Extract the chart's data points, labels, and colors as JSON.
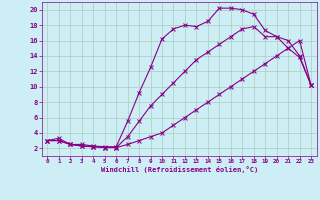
{
  "xlabel": "Windchill (Refroidissement éolien,°C)",
  "bg_color": "#cdeef5",
  "line_color": "#880088",
  "grid_color": "#aaccbb",
  "xlim": [
    -0.5,
    23.5
  ],
  "ylim": [
    1,
    21
  ],
  "xticks": [
    0,
    1,
    2,
    3,
    4,
    5,
    6,
    7,
    8,
    9,
    10,
    11,
    12,
    13,
    14,
    15,
    16,
    17,
    18,
    19,
    20,
    21,
    22,
    23
  ],
  "yticks": [
    2,
    4,
    6,
    8,
    10,
    12,
    14,
    16,
    18,
    20
  ],
  "line1_x": [
    0,
    1,
    2,
    3,
    4,
    5,
    6,
    7,
    8,
    9,
    10,
    11,
    12,
    13,
    14,
    15,
    16,
    17,
    18,
    19,
    20,
    21,
    22,
    23
  ],
  "line1_y": [
    3,
    3.3,
    2.5,
    2.5,
    2.3,
    2.2,
    2.2,
    5.5,
    9.2,
    12.5,
    16.2,
    17.5,
    18.0,
    17.8,
    18.5,
    20.2,
    20.2,
    20.0,
    19.4,
    17.3,
    16.5,
    15.0,
    13.8,
    10.2
  ],
  "line2_x": [
    0,
    1,
    2,
    3,
    4,
    5,
    6,
    7,
    8,
    9,
    10,
    11,
    12,
    13,
    14,
    15,
    16,
    17,
    18,
    19,
    20,
    21,
    22,
    23
  ],
  "line2_y": [
    3,
    3.0,
    2.5,
    2.3,
    2.2,
    2.1,
    2.1,
    3.5,
    5.5,
    7.5,
    9.0,
    10.5,
    12.0,
    13.5,
    14.5,
    15.5,
    16.5,
    17.5,
    17.8,
    16.5,
    16.5,
    16.0,
    14.0,
    10.2
  ],
  "line3_x": [
    0,
    1,
    2,
    3,
    4,
    5,
    6,
    7,
    8,
    9,
    10,
    11,
    12,
    13,
    14,
    15,
    16,
    17,
    18,
    19,
    20,
    21,
    22,
    23
  ],
  "line3_y": [
    3,
    3.0,
    2.5,
    2.3,
    2.2,
    2.1,
    2.1,
    2.5,
    3.0,
    3.5,
    4.0,
    5.0,
    6.0,
    7.0,
    8.0,
    9.0,
    10.0,
    11.0,
    12.0,
    13.0,
    14.0,
    15.0,
    16.0,
    10.2
  ]
}
